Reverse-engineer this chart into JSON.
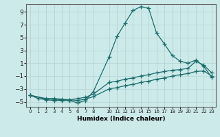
{
  "xlabel": "Humidex (Indice chaleur)",
  "bg_color": "#cdeaea",
  "line_color": "#1a6b6b",
  "grid_color": "#b8d8d8",
  "xlim": [
    -0.5,
    23.5
  ],
  "ylim": [
    -5.8,
    10.2
  ],
  "yticks": [
    -5,
    -3,
    -1,
    1,
    3,
    5,
    7,
    9
  ],
  "xticks": [
    0,
    1,
    2,
    3,
    4,
    5,
    6,
    7,
    8,
    10,
    11,
    12,
    13,
    14,
    15,
    16,
    17,
    18,
    19,
    20,
    21,
    22,
    23
  ],
  "line1_x": [
    0,
    1,
    2,
    3,
    4,
    5,
    6,
    7,
    8,
    10,
    11,
    12,
    13,
    14,
    15,
    16,
    17,
    18,
    19,
    20,
    21,
    22,
    23
  ],
  "line1_y": [
    -4.0,
    -4.5,
    -4.7,
    -4.8,
    -4.8,
    -4.8,
    -5.2,
    -4.8,
    -3.4,
    2.0,
    5.2,
    7.2,
    9.2,
    9.8,
    9.6,
    5.7,
    4.0,
    2.2,
    1.3,
    1.0,
    1.5,
    0.5,
    -1.2
  ],
  "line2_x": [
    0,
    2,
    3,
    4,
    5,
    6,
    7,
    8,
    10,
    11,
    12,
    13,
    14,
    15,
    16,
    17,
    18,
    19,
    20,
    21,
    22,
    23
  ],
  "line2_y": [
    -4.0,
    -4.5,
    -4.5,
    -4.6,
    -4.7,
    -4.5,
    -4.3,
    -3.8,
    -2.0,
    -1.8,
    -1.5,
    -1.3,
    -1.0,
    -0.8,
    -0.5,
    -0.3,
    -0.1,
    0.0,
    0.2,
    1.3,
    0.7,
    -0.5
  ],
  "line3_x": [
    0,
    2,
    3,
    4,
    5,
    6,
    7,
    8,
    10,
    11,
    12,
    13,
    14,
    15,
    16,
    17,
    18,
    19,
    20,
    21,
    22,
    23
  ],
  "line3_y": [
    -4.0,
    -4.6,
    -4.6,
    -4.7,
    -4.7,
    -4.8,
    -4.6,
    -4.2,
    -3.0,
    -2.8,
    -2.5,
    -2.3,
    -2.0,
    -1.8,
    -1.5,
    -1.3,
    -1.0,
    -0.8,
    -0.6,
    -0.3,
    -0.2,
    -1.0
  ]
}
